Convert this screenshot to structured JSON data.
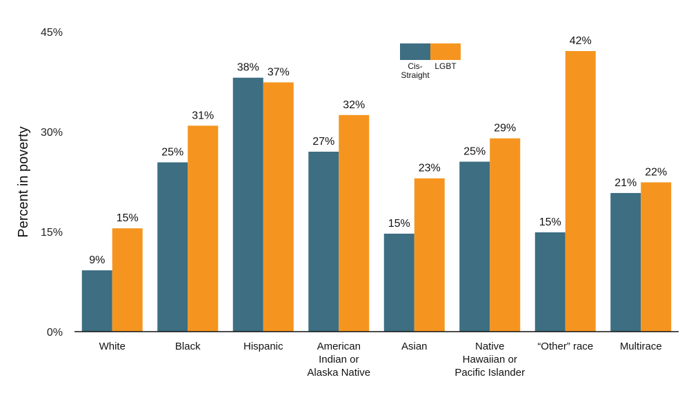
{
  "chart_data": {
    "type": "bar",
    "ylabel": "Percent in poverty",
    "ylim": [
      0,
      45
    ],
    "yticks": [
      0,
      15,
      30,
      45
    ],
    "ytick_labels": [
      "0%",
      "15%",
      "30%",
      "45%"
    ],
    "grid": false,
    "legend_position": "top-center",
    "categories": [
      "White",
      "Black",
      "Hispanic",
      "American Indian or Alaska Native",
      "Asian",
      "Native Hawaiian or Pacific Islander",
      "“Other” race",
      "Multirace"
    ],
    "category_lines": [
      [
        "White"
      ],
      [
        "Black"
      ],
      [
        "Hispanic"
      ],
      [
        "American",
        "Indian or",
        "Alaska Native"
      ],
      [
        "Asian"
      ],
      [
        "Native",
        "Hawaiian or",
        "Pacific Islander"
      ],
      [
        "“Other” race"
      ],
      [
        "Multirace"
      ]
    ],
    "series": [
      {
        "name": "Cis-Straight",
        "name_lines": [
          "Cis-",
          "Straight"
        ],
        "color": "#3d6e82",
        "values": [
          9.2,
          25.4,
          38.1,
          27.0,
          14.7,
          25.5,
          14.9,
          20.8
        ],
        "labels": [
          "9%",
          "25%",
          "38%",
          "27%",
          "15%",
          "25%",
          "15%",
          "21%"
        ]
      },
      {
        "name": "LGBT",
        "name_lines": [
          "LGBT"
        ],
        "color": "#f5951f",
        "values": [
          15.5,
          30.9,
          37.4,
          32.5,
          23.0,
          29.0,
          42.1,
          22.4
        ],
        "labels": [
          "15%",
          "31%",
          "37%",
          "32%",
          "23%",
          "29%",
          "42%",
          "22%"
        ]
      }
    ]
  }
}
